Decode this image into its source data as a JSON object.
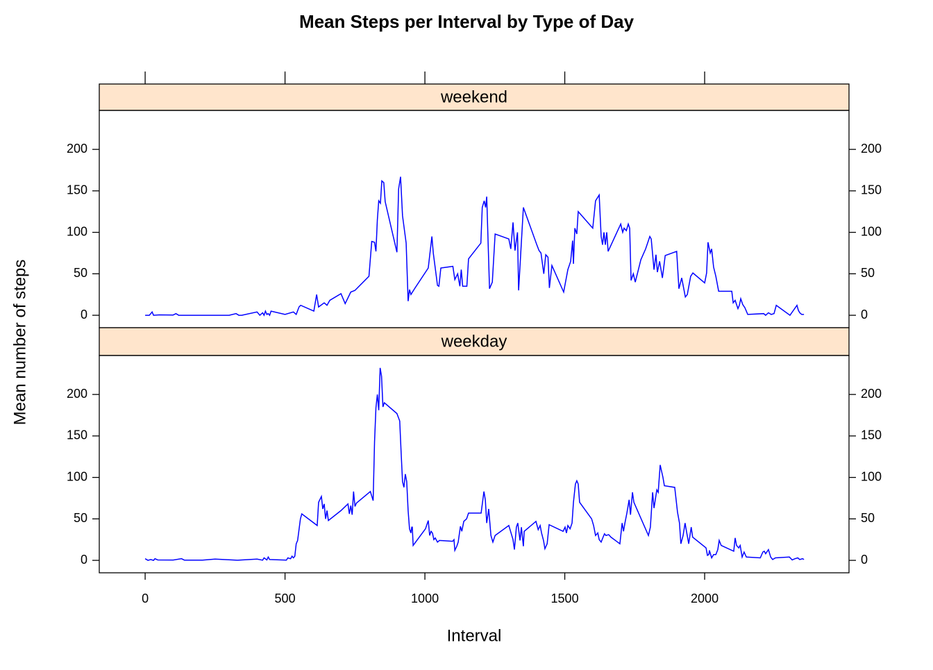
{
  "chart_data": {
    "type": "line",
    "title": "Mean Steps per Interval by Type of Day",
    "x_label": "Interval",
    "y_label": "Mean number of steps",
    "xlim": [
      -164,
      2516
    ],
    "ylim": [
      -15,
      247
    ],
    "xticks": [
      0,
      500,
      1000,
      1500,
      2000
    ],
    "yticks": [
      0,
      50,
      100,
      150,
      200
    ],
    "series": [
      {
        "name": "weekend",
        "color": "#0000ff",
        "x": [
          0,
          15,
          25,
          30,
          50,
          100,
          110,
          120,
          200,
          300,
          325,
          335,
          345,
          400,
          410,
          420,
          425,
          430,
          435,
          440,
          445,
          450,
          500,
          530,
          540,
          550,
          556,
          603,
          613,
          620,
          640,
          650,
          660,
          700,
          715,
          735,
          750,
          800,
          810,
          820,
          825,
          830,
          835,
          841,
          846,
          853,
          858,
          900,
          906,
          913,
          920,
          933,
          940,
          945,
          950,
          965,
          1012,
          1025,
          1030,
          1045,
          1050,
          1057,
          1100,
          1107,
          1117,
          1125,
          1130,
          1135,
          1150,
          1156,
          1200,
          1205,
          1212,
          1217,
          1221,
          1231,
          1241,
          1251,
          1300,
          1307,
          1315,
          1322,
          1331,
          1335,
          1352,
          1400,
          1408,
          1415,
          1425,
          1432,
          1440,
          1445,
          1454,
          1496,
          1511,
          1521,
          1528,
          1531,
          1536,
          1543,
          1548,
          1600,
          1610,
          1623,
          1630,
          1635,
          1640,
          1645,
          1650,
          1655,
          1700,
          1707,
          1712,
          1720,
          1727,
          1732,
          1737,
          1745,
          1752,
          1772,
          1789,
          1804,
          1809,
          1819,
          1826,
          1831,
          1839,
          1849,
          1859,
          1900,
          1908,
          1918,
          1931,
          1938,
          1950,
          1958,
          2000,
          2007,
          2012,
          2020,
          2025,
          2032,
          2040,
          2050,
          2097,
          2102,
          2109,
          2119,
          2124,
          2129,
          2136,
          2144,
          2154,
          2211,
          2218,
          2228,
          2238,
          2248,
          2256,
          2305,
          2330,
          2335,
          2340,
          2347,
          2355
        ],
        "values": [
          0,
          0,
          4,
          0,
          0.5,
          0.3,
          2,
          0,
          0,
          0,
          2,
          0,
          0,
          4,
          0,
          3,
          0,
          5,
          1,
          2,
          0,
          5,
          1,
          4,
          1,
          10,
          12,
          5,
          25,
          10,
          15,
          12,
          18,
          26,
          14,
          28,
          30,
          47,
          89,
          88,
          77,
          115,
          138,
          135,
          162,
          160,
          137,
          76,
          152,
          167,
          120,
          87,
          17,
          31,
          25,
          33,
          57,
          95,
          75,
          36,
          35,
          57,
          59,
          43,
          50,
          35,
          55,
          35,
          35,
          68,
          87,
          130,
          138,
          130,
          143,
          32,
          40,
          98,
          92,
          80,
          112,
          78,
          100,
          30,
          130,
          85,
          78,
          75,
          50,
          73,
          70,
          33,
          60,
          28,
          55,
          65,
          90,
          62,
          105,
          98,
          125,
          105,
          138,
          145,
          95,
          85,
          100,
          85,
          100,
          77,
          110,
          100,
          105,
          102,
          110,
          105,
          42,
          50,
          40,
          67,
          80,
          95,
          92,
          55,
          73,
          52,
          65,
          45,
          72,
          77,
          32,
          45,
          22,
          25,
          47,
          51,
          39,
          51,
          88,
          75,
          80,
          58,
          47,
          29,
          29,
          15,
          18,
          8,
          12,
          20,
          13,
          9,
          1,
          2,
          0,
          3,
          1,
          2,
          12,
          0,
          12,
          6,
          3,
          1,
          1
        ]
      },
      {
        "name": "weekday",
        "color": "#0000ff",
        "x": [
          0,
          10,
          20,
          30,
          35,
          45,
          100,
          130,
          140,
          205,
          250,
          330,
          400,
          420,
          425,
          435,
          440,
          445,
          505,
          510,
          520,
          525,
          530,
          535,
          540,
          545,
          555,
          560,
          615,
          620,
          630,
          635,
          640,
          645,
          650,
          655,
          700,
          725,
          730,
          735,
          740,
          745,
          750,
          755,
          805,
          815,
          820,
          825,
          830,
          835,
          840,
          845,
          850,
          855,
          900,
          910,
          915,
          920,
          925,
          930,
          935,
          940,
          945,
          950,
          953,
          955,
          958,
          1002,
          1012,
          1017,
          1022,
          1027,
          1032,
          1037,
          1045,
          1052,
          1099,
          1104,
          1107,
          1114,
          1119,
          1127,
          1132,
          1139,
          1149,
          1156,
          1201,
          1211,
          1216,
          1221,
          1228,
          1236,
          1243,
          1251,
          1300,
          1308,
          1315,
          1320,
          1327,
          1332,
          1340,
          1345,
          1352,
          1355,
          1397,
          1405,
          1412,
          1417,
          1424,
          1429,
          1437,
          1444,
          1494,
          1501,
          1506,
          1511,
          1519,
          1526,
          1531,
          1538,
          1543,
          1548,
          1553,
          1596,
          1603,
          1610,
          1618,
          1623,
          1630,
          1637,
          1642,
          1647,
          1657,
          1665,
          1697,
          1705,
          1710,
          1715,
          1722,
          1730,
          1735,
          1742,
          1747,
          1799,
          1806,
          1814,
          1819,
          1829,
          1834,
          1841,
          1851,
          1856,
          1893,
          1903,
          1910,
          1915,
          1923,
          1930,
          1935,
          1943,
          1952,
          1957,
          2005,
          2010,
          2015,
          2017,
          2025,
          2032,
          2040,
          2047,
          2052,
          2059,
          2104,
          2109,
          2114,
          2122,
          2127,
          2134,
          2141,
          2149,
          2199,
          2208,
          2213,
          2218,
          2228,
          2236,
          2243,
          2253,
          2303,
          2313,
          2323,
          2333,
          2340,
          2350,
          2355
        ],
        "values": [
          2,
          0,
          1,
          0,
          2,
          0.5,
          0.4,
          2,
          0.3,
          0.3,
          1.5,
          0.2,
          1.5,
          0.2,
          3,
          0.5,
          4,
          1,
          0.3,
          3,
          2,
          5,
          3,
          5,
          20,
          24,
          50,
          56,
          42,
          70,
          77,
          62,
          68,
          50,
          60,
          48,
          60,
          68,
          56,
          66,
          55,
          83,
          65,
          69,
          83,
          72,
          143,
          184,
          200,
          181,
          232,
          222,
          185,
          190,
          177,
          168,
          130,
          95,
          88,
          104,
          95,
          60,
          38,
          33,
          40,
          40,
          18,
          38,
          48,
          30,
          35,
          33,
          25,
          27,
          22,
          24,
          23,
          25,
          12,
          17,
          22,
          41,
          35,
          47,
          50,
          57,
          57,
          83,
          73,
          45,
          62,
          30,
          22,
          30,
          42,
          33,
          25,
          13,
          40,
          45,
          24,
          40,
          17,
          35,
          47,
          37,
          42,
          33,
          24,
          14,
          20,
          43,
          35,
          40,
          33,
          42,
          38,
          45,
          70,
          92,
          96,
          92,
          70,
          50,
          42,
          30,
          33,
          25,
          22,
          28,
          32,
          30,
          31,
          28,
          20,
          45,
          35,
          45,
          57,
          73,
          55,
          82,
          70,
          30,
          40,
          82,
          63,
          85,
          82,
          115,
          100,
          90,
          88,
          58,
          45,
          20,
          30,
          45,
          35,
          20,
          40,
          28,
          15,
          6,
          7,
          12,
          3,
          7,
          7,
          13,
          24,
          18,
          11,
          27,
          18,
          15,
          18,
          4,
          10,
          4,
          3,
          10,
          11,
          8,
          13,
          4,
          1,
          3,
          4,
          0.5,
          2,
          3,
          1,
          2,
          1
        ]
      }
    ]
  }
}
